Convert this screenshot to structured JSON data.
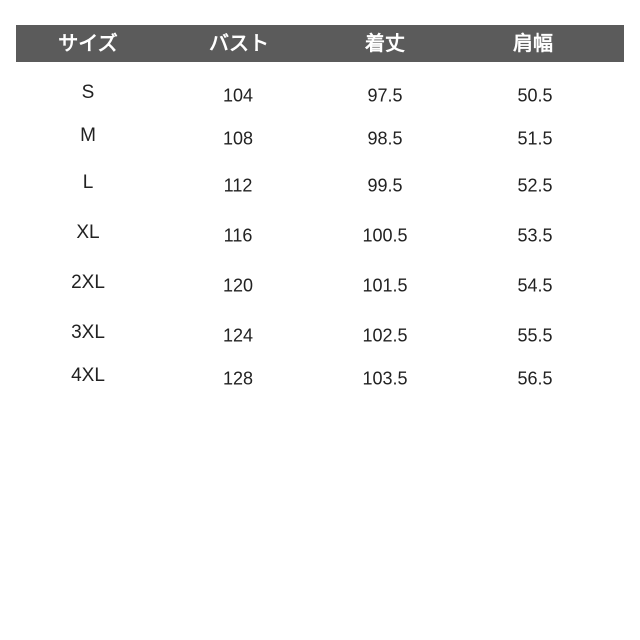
{
  "header": [
    "サイズ",
    "バスト",
    "着丈",
    "肩幅"
  ],
  "rows": [
    [
      "S",
      "104",
      "97.5",
      "50.5"
    ],
    [
      "M",
      "108",
      "98.5",
      "51.5"
    ],
    [
      "L",
      "112",
      "99.5",
      "52.5"
    ],
    [
      "XL",
      "116",
      "100.5",
      "53.5"
    ],
    [
      "2XL",
      "120",
      "101.5",
      "54.5"
    ],
    [
      "3XL",
      "124",
      "102.5",
      "55.5"
    ],
    [
      "4XL",
      "128",
      "103.5",
      "56.5"
    ]
  ],
  "colors": {
    "header_bg": "#5b5b5b",
    "header_text": "#ffffff"
  }
}
